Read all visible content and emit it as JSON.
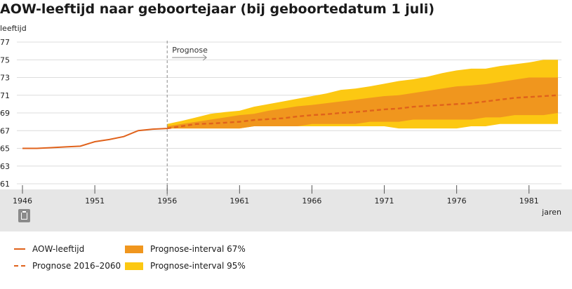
{
  "title": "AOW-leeftijd naar geboortejaar (bij geboortedatum 1 juli)",
  "chart_data": {
    "type": "line",
    "ylabel": "leeftijd",
    "xlabel": "jaren",
    "ylim": [
      61,
      77
    ],
    "yticks": [
      61,
      63,
      65,
      67,
      69,
      71,
      73,
      75,
      77
    ],
    "xlim": [
      1945.8,
      1984.3
    ],
    "xticks": [
      1946,
      1951,
      1956,
      1961,
      1966,
      1971,
      1976,
      1981
    ],
    "grid": true,
    "prognose_label": "Prognose",
    "prognose_year": 1956,
    "colors": {
      "aow": "#e0621b",
      "band67": "#f0961e",
      "band95": "#fcc812",
      "grid": "#dcdcdc",
      "footer": "#e6e6e6"
    },
    "series": [
      {
        "name": "AOW-leeftijd",
        "style": "solid",
        "x": [
          1946,
          1947,
          1948,
          1949,
          1950,
          1951,
          1952,
          1953,
          1954,
          1955,
          1956
        ],
        "y": [
          65.0,
          65.0,
          65.08,
          65.17,
          65.25,
          65.75,
          66.0,
          66.33,
          67.0,
          67.17,
          67.25
        ]
      },
      {
        "name": "Prognose 2016–2060",
        "style": "dashed",
        "x": [
          1956,
          1957,
          1958,
          1959,
          1960,
          1961,
          1962,
          1963,
          1964,
          1965,
          1966,
          1967,
          1968,
          1969,
          1970,
          1971,
          1972,
          1973,
          1974,
          1975,
          1976,
          1977,
          1978,
          1979,
          1980,
          1981,
          1982,
          1983
        ],
        "y": [
          67.25,
          67.5,
          67.75,
          67.8,
          67.9,
          68.0,
          68.2,
          68.3,
          68.4,
          68.6,
          68.75,
          68.85,
          69.0,
          69.1,
          69.25,
          69.4,
          69.5,
          69.7,
          69.8,
          69.9,
          70.0,
          70.1,
          70.3,
          70.5,
          70.7,
          70.8,
          70.9,
          71.0
        ]
      }
    ],
    "bands": [
      {
        "name": "Prognose-interval 95%",
        "x": [
          1956,
          1957,
          1958,
          1959,
          1960,
          1961,
          1962,
          1963,
          1964,
          1965,
          1966,
          1967,
          1968,
          1969,
          1970,
          1971,
          1972,
          1973,
          1974,
          1975,
          1976,
          1977,
          1978,
          1979,
          1980,
          1981,
          1982,
          1983
        ],
        "lower": [
          67.25,
          67.25,
          67.25,
          67.25,
          67.25,
          67.25,
          67.5,
          67.5,
          67.5,
          67.5,
          67.5,
          67.5,
          67.5,
          67.5,
          67.5,
          67.5,
          67.25,
          67.25,
          67.25,
          67.25,
          67.25,
          67.5,
          67.5,
          67.75,
          67.75,
          67.75,
          67.75,
          67.75
        ],
        "upper": [
          67.75,
          68.1,
          68.5,
          68.9,
          69.1,
          69.25,
          69.7,
          70.0,
          70.3,
          70.6,
          70.9,
          71.2,
          71.6,
          71.75,
          72.0,
          72.3,
          72.6,
          72.8,
          73.1,
          73.5,
          73.8,
          74.0,
          74.0,
          74.3,
          74.5,
          74.7,
          75.0,
          75.0
        ]
      },
      {
        "name": "Prognose-interval 67%",
        "x": [
          1956,
          1957,
          1958,
          1959,
          1960,
          1961,
          1962,
          1963,
          1964,
          1965,
          1966,
          1967,
          1968,
          1969,
          1970,
          1971,
          1972,
          1973,
          1974,
          1975,
          1976,
          1977,
          1978,
          1979,
          1980,
          1981,
          1982,
          1983
        ],
        "lower": [
          67.25,
          67.25,
          67.25,
          67.25,
          67.25,
          67.25,
          67.5,
          67.5,
          67.5,
          67.5,
          67.75,
          67.75,
          67.75,
          67.75,
          68.0,
          68.0,
          68.0,
          68.25,
          68.25,
          68.25,
          68.25,
          68.25,
          68.5,
          68.5,
          68.75,
          68.75,
          68.75,
          69.0
        ],
        "upper": [
          67.5,
          67.75,
          68.0,
          68.25,
          68.5,
          68.75,
          68.9,
          69.25,
          69.5,
          69.75,
          69.9,
          70.1,
          70.3,
          70.5,
          70.7,
          70.9,
          71.0,
          71.25,
          71.5,
          71.75,
          72.0,
          72.1,
          72.25,
          72.5,
          72.75,
          73.0,
          73.0,
          73.0
        ]
      }
    ]
  },
  "legend": {
    "aow": "AOW-leeftijd",
    "prognose": "Prognose 2016–2060",
    "band67": "Prognose-interval 67%",
    "band95": "Prognose-interval 95%"
  },
  "icons": {
    "source": "cbs-icon"
  }
}
